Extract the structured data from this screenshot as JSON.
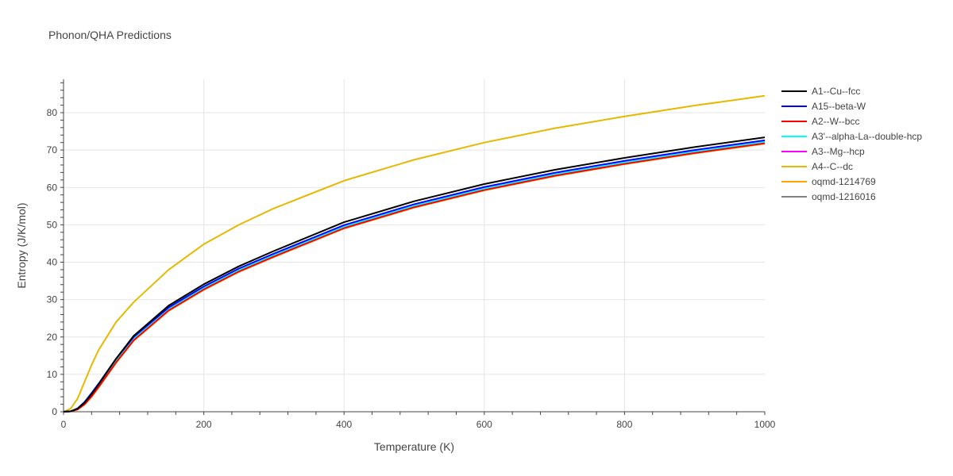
{
  "title": "Phonon/QHA Predictions",
  "chart_data": {
    "type": "line",
    "title": "Phonon/QHA Predictions",
    "xlabel": "Temperature (K)",
    "ylabel": "Entropy (J/K/mol)",
    "xlim": [
      0,
      1000
    ],
    "ylim": [
      0,
      89
    ],
    "grid": true,
    "legend_position": "right",
    "x_ticks": [
      0,
      200,
      400,
      600,
      800,
      1000
    ],
    "y_ticks": [
      0,
      10,
      20,
      30,
      40,
      50,
      60,
      70,
      80
    ],
    "x": [
      0,
      10,
      20,
      30,
      40,
      50,
      75,
      100,
      150,
      200,
      250,
      300,
      400,
      500,
      600,
      700,
      800,
      900,
      1000
    ],
    "series": [
      {
        "name": "A1--Cu--fcc",
        "color": "#000000",
        "values": [
          0,
          0.1,
          0.8,
          2.4,
          4.7,
          7.3,
          14.2,
          20.3,
          28.4,
          34.1,
          38.9,
          43.0,
          50.7,
          56.3,
          60.9,
          64.7,
          67.9,
          70.8,
          73.4
        ]
      },
      {
        "name": "A15--beta-W",
        "color": "#0000ff",
        "values": [
          0,
          0.1,
          0.9,
          2.6,
          5.0,
          7.5,
          14.2,
          20.0,
          27.9,
          33.5,
          38.3,
          42.3,
          49.9,
          55.5,
          60.1,
          63.9,
          67.1,
          70.0,
          72.6
        ]
      },
      {
        "name": "A2--W--bcc",
        "color": "#ff0000",
        "values": [
          0,
          0.1,
          0.6,
          2.0,
          4.1,
          6.6,
          13.2,
          19.1,
          27.1,
          32.7,
          37.5,
          41.5,
          49.1,
          54.7,
          59.3,
          63.1,
          66.3,
          69.2,
          71.8
        ]
      },
      {
        "name": "A3'--alpha-La--double-hcp",
        "color": "#00ffff",
        "values": [
          0,
          0.1,
          0.7,
          2.2,
          4.4,
          6.9,
          13.6,
          19.5,
          27.5,
          33.1,
          37.9,
          41.9,
          49.5,
          55.1,
          59.7,
          63.5,
          66.7,
          69.6,
          72.2
        ]
      },
      {
        "name": "A3--Mg--hcp",
        "color": "#ff00ff",
        "values": [
          0,
          0.1,
          0.7,
          2.2,
          4.4,
          6.9,
          13.5,
          19.4,
          27.4,
          33.0,
          37.8,
          41.8,
          49.4,
          55.0,
          59.6,
          63.4,
          66.6,
          69.5,
          72.1
        ]
      },
      {
        "name": "A4--C--dc",
        "color": "#e6b800",
        "values": [
          0,
          0.8,
          3.5,
          8.0,
          12.5,
          16.5,
          24.0,
          29.3,
          38.0,
          44.8,
          50.0,
          54.4,
          61.8,
          67.4,
          72.0,
          75.8,
          79.0,
          81.9,
          84.5
        ]
      },
      {
        "name": "oqmd-1214769",
        "color": "#ffa500",
        "values": [
          0,
          0.1,
          0.6,
          1.9,
          4.0,
          6.5,
          13.1,
          19.0,
          27.0,
          32.6,
          37.4,
          41.4,
          49.0,
          54.6,
          59.2,
          63.0,
          66.2,
          69.1,
          71.7
        ]
      },
      {
        "name": "oqmd-1216016",
        "color": "#808080",
        "values": [
          0,
          0.1,
          0.7,
          2.2,
          4.4,
          6.9,
          13.6,
          19.5,
          27.5,
          33.1,
          37.9,
          41.9,
          49.5,
          55.1,
          59.7,
          63.5,
          66.7,
          69.6,
          72.2
        ]
      }
    ]
  }
}
